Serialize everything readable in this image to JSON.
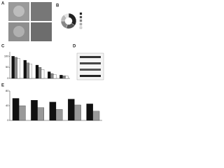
{
  "panel_labels": [
    "A",
    "B",
    "C",
    "D",
    "E"
  ],
  "donut": {
    "values": [
      35,
      20,
      20,
      15,
      10
    ],
    "colors": [
      "#222222",
      "#555555",
      "#888888",
      "#bbbbbb",
      "#e6e6e6"
    ]
  },
  "chart_c": {
    "type": "bar",
    "categories": [
      null,
      null,
      null,
      null,
      null
    ],
    "series": [
      {
        "color": "#111111",
        "values": [
          100,
          82,
          60,
          30,
          15
        ]
      },
      {
        "color": "#888888",
        "values": [
          95,
          70,
          50,
          22,
          12
        ]
      },
      {
        "color": "#ffffff",
        "values": [
          90,
          65,
          40,
          18,
          10
        ]
      }
    ],
    "ylim": [
      0,
      120
    ],
    "yticks": [
      0,
      50,
      100
    ]
  },
  "chart_e": {
    "type": "bar",
    "categories": [
      null,
      null,
      null,
      null,
      null
    ],
    "series": [
      {
        "color": "#111111",
        "values": [
          60,
          55,
          50,
          58,
          45
        ]
      },
      {
        "color": "#999999",
        "values": [
          40,
          35,
          30,
          42,
          25
        ]
      }
    ],
    "ylim": [
      0,
      80
    ],
    "yticks": [
      0,
      40,
      80
    ]
  }
}
